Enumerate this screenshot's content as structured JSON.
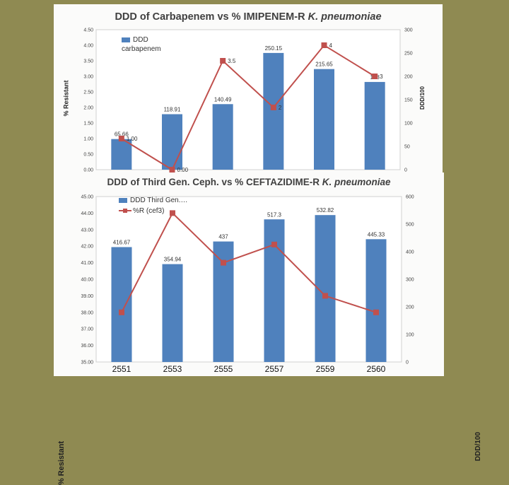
{
  "chart_data": [
    {
      "type": "bar+line",
      "title_main": "DDD of Carbapenem vs % IMIPENEM-R ",
      "title_italic": "K. pneumoniae",
      "ylabel_left": "% Resistant",
      "ylabel_right": "DDD/100",
      "ylim_left": [
        0,
        4.5
      ],
      "ylim_right": [
        0,
        300
      ],
      "left_ticks": [
        "0.00",
        "0.50",
        "1.00",
        "1.50",
        "2.00",
        "2.50",
        "3.00",
        "3.50",
        "4.00",
        "4.50"
      ],
      "right_ticks": [
        "0",
        "50",
        "100",
        "150",
        "200",
        "250",
        "300"
      ],
      "legend": {
        "bar_name": "DDD carbapenem"
      },
      "series": [
        {
          "name": "DDD carbapenem",
          "type": "bar",
          "axis": "right",
          "color": "#4f81bd",
          "values": [
            65.66,
            118.91,
            140.49,
            250.15,
            215.65,
            188
          ],
          "labels": [
            "65.66",
            "118.91",
            "140.49",
            "250.15",
            "215.65",
            "188"
          ]
        },
        {
          "type": "line",
          "axis": "left",
          "color": "#c0504d",
          "values": [
            1.0,
            0.0,
            3.5,
            2.0,
            4.0,
            3.0
          ],
          "labels": [
            "1.00",
            "0.00",
            "3.5",
            "2",
            "4",
            "3"
          ]
        }
      ]
    },
    {
      "type": "bar+line",
      "title_main": "DDD of Third Gen. Ceph. vs % CEFTAZIDIME-R ",
      "title_italic": "K. pneumoniae",
      "ylabel_left": "% Resistant",
      "ylabel_right": "DDD/100",
      "categories": [
        "2551",
        "2553",
        "2555",
        "2557",
        "2559",
        "2560"
      ],
      "ylim_left": [
        35,
        45
      ],
      "ylim_right": [
        0,
        600
      ],
      "left_ticks": [
        "35.00",
        "36.00",
        "37.00",
        "38.00",
        "39.00",
        "40.00",
        "41.00",
        "42.00",
        "43.00",
        "44.00",
        "45.00"
      ],
      "right_ticks": [
        "0",
        "100",
        "200",
        "300",
        "400",
        "500",
        "600"
      ],
      "legend": {
        "bar_name": "DDD Third Gen.…",
        "line_name": "%R (cef3)"
      },
      "series": [
        {
          "name": "DDD Third Gen.…",
          "type": "bar",
          "axis": "right",
          "color": "#4f81bd",
          "values": [
            416.67,
            354.94,
            437,
            517.3,
            532.82,
            445.33
          ],
          "labels": [
            "416.67",
            "354.94",
            "437",
            "517.3",
            "532.82",
            "445.33"
          ]
        },
        {
          "name": "%R (cef3)",
          "type": "line",
          "axis": "left",
          "color": "#c0504d",
          "values": [
            38.0,
            44.0,
            41.0,
            42.1,
            39.0,
            38.0
          ]
        }
      ]
    }
  ]
}
